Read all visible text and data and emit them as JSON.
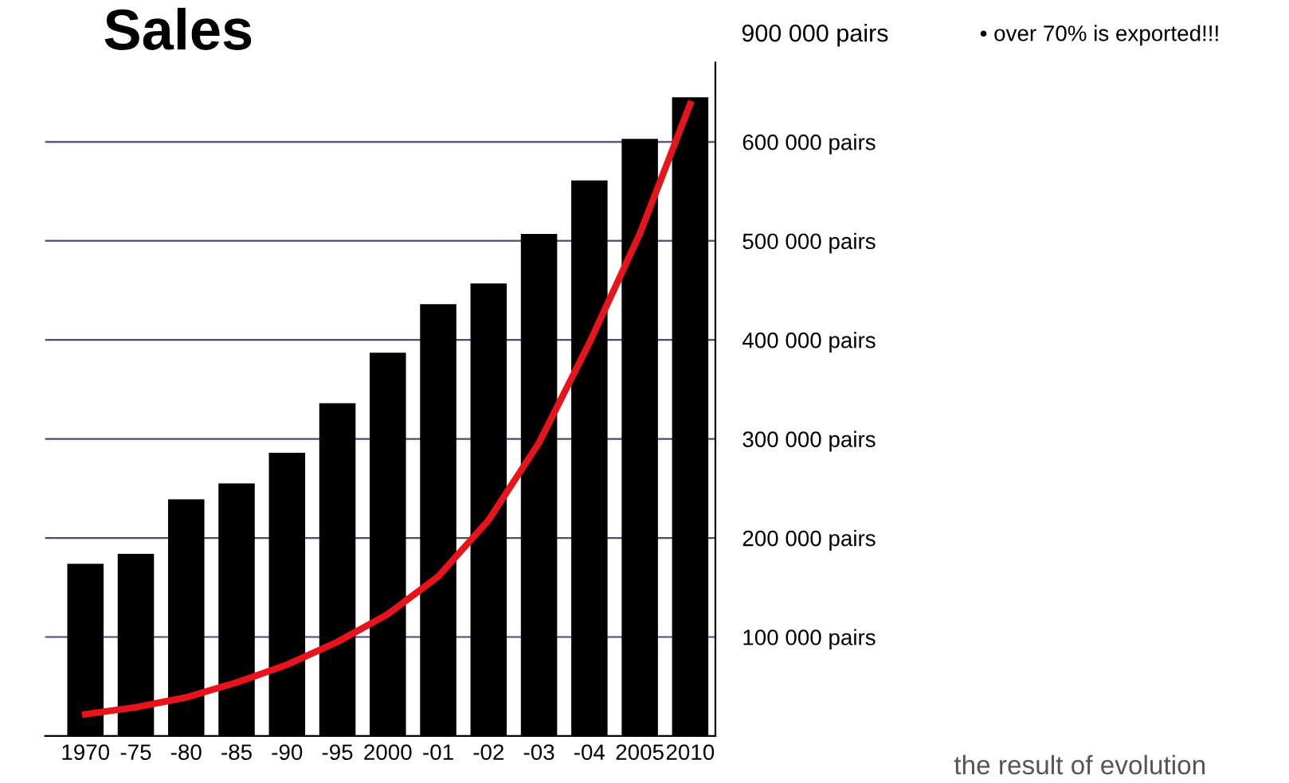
{
  "chart_data": {
    "type": "bar",
    "title": "Sales",
    "categories": [
      "1970",
      "-75",
      "-80",
      "-85",
      "-90",
      "-95",
      "2000",
      "-01",
      "-02",
      "-03",
      "-04",
      "2005",
      "2010"
    ],
    "series": [
      {
        "color": "#000000",
        "values": [
          174000,
          184000,
          239000,
          255000,
          286000,
          336000,
          387000,
          436000,
          457000,
          507000,
          561000,
          603000,
          645000
        ]
      },
      {
        "type": "line",
        "color": "#e8141c",
        "values": [
          22000,
          29000,
          39000,
          54000,
          72000,
          95000,
          123000,
          161000,
          218000,
          296000,
          397000,
          507000,
          638000
        ]
      }
    ],
    "ylim": [
      0,
      680000
    ],
    "yticks": [
      {
        "value": 100000,
        "label": "100 000 pairs"
      },
      {
        "value": 200000,
        "label": "200 000 pairs"
      },
      {
        "value": 300000,
        "label": "300 000 pairs"
      },
      {
        "value": 400000,
        "label": "400 000 pairs"
      },
      {
        "value": 500000,
        "label": "500 000 pairs"
      },
      {
        "value": 600000,
        "label": "600 000 pairs"
      }
    ],
    "grid": "y",
    "line_style": "solid",
    "marker": "none",
    "annotations": [
      "900 000 pairs",
      "• over 70% is exported!!!",
      "the result of evolution"
    ]
  }
}
